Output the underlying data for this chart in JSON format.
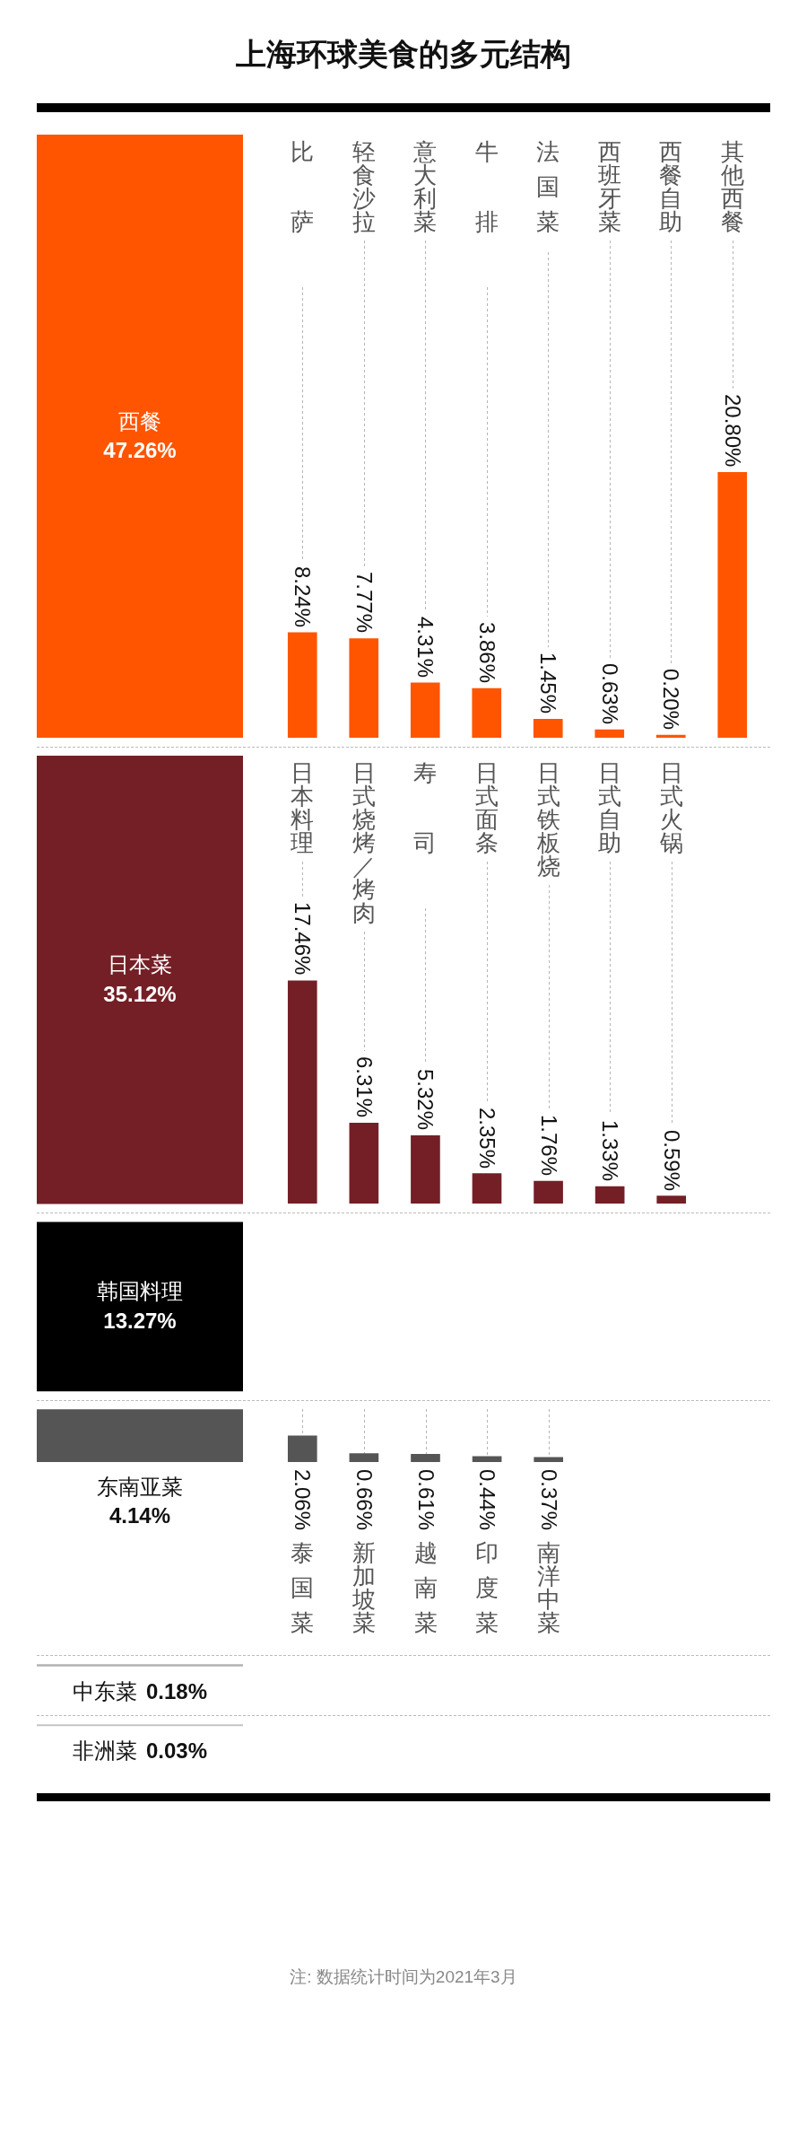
{
  "chart_data": [
    {
      "type": "other",
      "title": "上海环球美食的多元结构"
    },
    {
      "type": "other",
      "categories": [
        "西餐",
        "日本菜",
        "韩国料理",
        "东南亚菜",
        "中东菜",
        "非洲菜"
      ],
      "values": [
        47.26,
        35.12,
        13.27,
        4.14,
        0.18,
        0.03
      ],
      "value_labels": [
        "47.26%",
        "35.12%",
        "13.27%",
        "4.14%",
        "0.18%",
        "0.03%"
      ],
      "colors": [
        "#ff5500",
        "#741f26",
        "#000000",
        "#555555",
        "#b3b3b3",
        "#c4c4c4"
      ]
    },
    {
      "type": "bar",
      "categories": [
        "比萨",
        "轻食沙拉",
        "意大利菜",
        "牛排",
        "法国菜",
        "西班牙菜",
        "西餐自助",
        "其他西餐"
      ],
      "values": [
        8.24,
        7.77,
        4.31,
        3.86,
        1.45,
        0.63,
        0.2,
        20.8
      ],
      "value_labels": [
        "8.24%",
        "7.77%",
        "4.31%",
        "3.86%",
        "1.45%",
        "0.63%",
        "0.20%",
        "20.80%"
      ],
      "color": "#ff5500",
      "grid": "x"
    },
    {
      "type": "bar",
      "categories": [
        "日本料理",
        "日式烧烤／烤肉",
        "寿司",
        "日式面条",
        "日式铁板烧",
        "日式自助",
        "日式火锅"
      ],
      "values": [
        17.46,
        6.31,
        5.32,
        2.35,
        1.76,
        1.33,
        0.59
      ],
      "value_labels": [
        "17.46%",
        "6.31%",
        "5.32%",
        "2.35%",
        "1.76%",
        "1.33%",
        "0.59%"
      ],
      "color": "#741f26",
      "grid": "x"
    },
    {
      "type": "bar",
      "categories": [
        "泰国菜",
        "新加坡菜",
        "越南菜",
        "印度菜",
        "南洋中菜"
      ],
      "values": [
        2.06,
        0.66,
        0.61,
        0.44,
        0.37
      ],
      "value_labels": [
        "2.06%",
        "0.66%",
        "0.61%",
        "0.44%",
        "0.37%"
      ],
      "color": "#555555",
      "grid": "x"
    },
    {
      "type": "other",
      "annotations": [
        "注: 数据统计时间为2021年3月"
      ]
    }
  ]
}
